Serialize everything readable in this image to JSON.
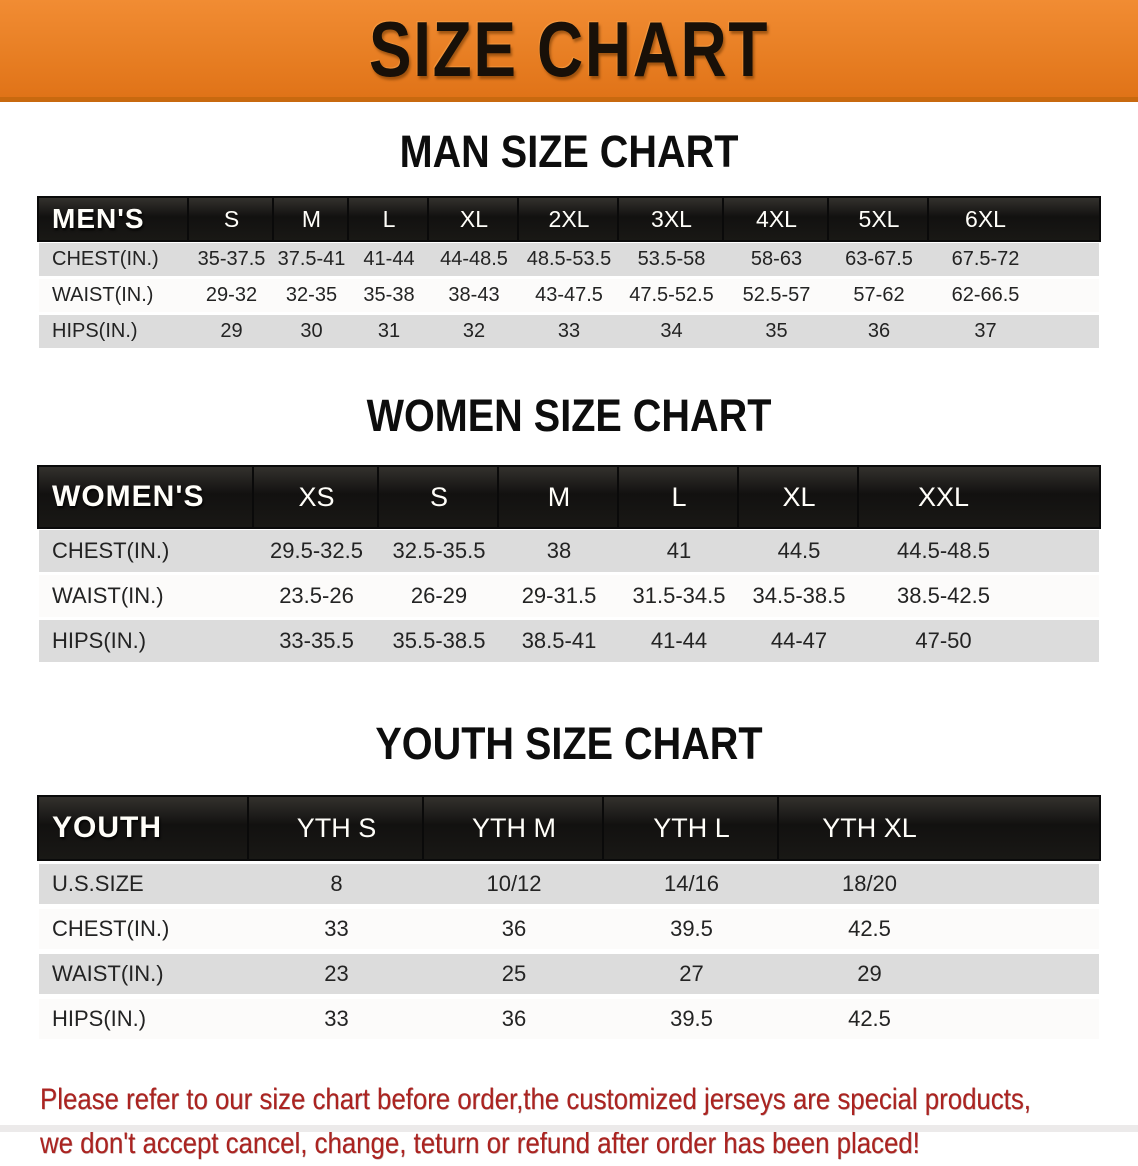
{
  "banner": {
    "title": "SIZE CHART",
    "bg_color": "#e87f24",
    "text_color": "#181008"
  },
  "sections": [
    {
      "heading": "MAN SIZE CHART",
      "table": {
        "label": "MEN'S",
        "columns": [
          "S",
          "M",
          "L",
          "XL",
          "2XL",
          "3XL",
          "4XL",
          "5XL",
          "6XL"
        ],
        "rows": [
          {
            "label": "CHEST(IN.)",
            "values": [
              "35-37.5",
              "37.5-41",
              "41-44",
              "44-48.5",
              "48.5-53.5",
              "53.5-58",
              "58-63",
              "63-67.5",
              "67.5-72"
            ]
          },
          {
            "label": "WAIST(IN.)",
            "values": [
              "29-32",
              "32-35",
              "35-38",
              "38-43",
              "43-47.5",
              "47.5-52.5",
              "52.5-57",
              "57-62",
              "62-66.5"
            ]
          },
          {
            "label": "HIPS(IN.)",
            "values": [
              "29",
              "30",
              "31",
              "32",
              "33",
              "34",
              "35",
              "36",
              "37"
            ]
          }
        ]
      }
    },
    {
      "heading": "WOMEN SIZE CHART",
      "table": {
        "label": "WOMEN'S",
        "columns": [
          "XS",
          "S",
          "M",
          "L",
          "XL",
          "XXL"
        ],
        "rows": [
          {
            "label": "CHEST(IN.)",
            "values": [
              "29.5-32.5",
              "32.5-35.5",
              "38",
              "41",
              "44.5",
              "44.5-48.5"
            ]
          },
          {
            "label": "WAIST(IN.)",
            "values": [
              "23.5-26",
              "26-29",
              "29-31.5",
              "31.5-34.5",
              "34.5-38.5",
              "38.5-42.5"
            ]
          },
          {
            "label": "HIPS(IN.)",
            "values": [
              "33-35.5",
              "35.5-38.5",
              "38.5-41",
              "41-44",
              "44-47",
              "47-50"
            ]
          }
        ]
      }
    },
    {
      "heading": "YOUTH SIZE CHART",
      "table": {
        "label": "YOUTH",
        "columns": [
          "YTH S",
          "YTH M",
          "YTH L",
          "YTH XL"
        ],
        "rows": [
          {
            "label": "U.S.SIZE",
            "values": [
              "8",
              "10/12",
              "14/16",
              "18/20"
            ]
          },
          {
            "label": "CHEST(IN.)",
            "values": [
              "33",
              "36",
              "39.5",
              "42.5"
            ]
          },
          {
            "label": "WAIST(IN.)",
            "values": [
              "23",
              "25",
              "27",
              "29"
            ]
          },
          {
            "label": "HIPS(IN.)",
            "values": [
              "33",
              "36",
              "39.5",
              "42.5"
            ]
          }
        ]
      }
    }
  ],
  "footer": {
    "line1": "Please refer to our size chart before order,the customized jerseys are special products,",
    "line2": "we don't accept cancel, change, teturn or refund after order has been placed!",
    "text_color": "#ab2320"
  }
}
